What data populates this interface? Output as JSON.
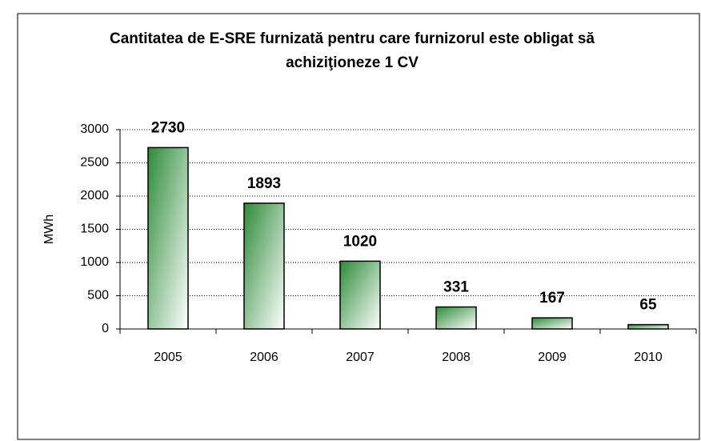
{
  "chart_data": {
    "type": "bar",
    "title": "Cantitatea de E-SRE furnizată pentru care furnizorul este obligat să achiziţioneze 1 CV",
    "y_label": "MWh",
    "categories": [
      "2005",
      "2006",
      "2007",
      "2008",
      "2009",
      "2010"
    ],
    "values": [
      2730,
      1893,
      1020,
      331,
      167,
      65
    ],
    "color": "#2e8b3a",
    "ylim": [
      0,
      3000
    ],
    "yticks": [
      0,
      500,
      1000,
      1500,
      2000,
      2500,
      3000
    ],
    "grid": true
  }
}
